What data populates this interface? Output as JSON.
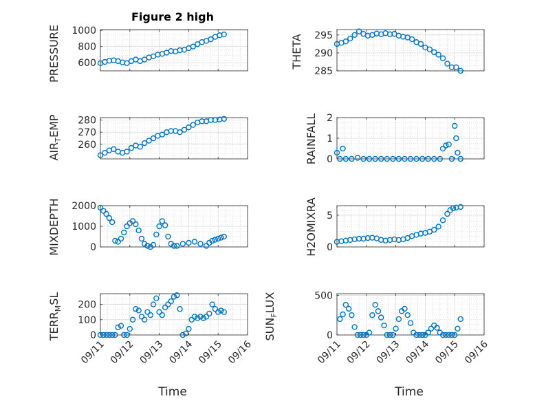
{
  "chart_data": [
    {
      "type": "scatter",
      "title": "Figure 2 high",
      "ylabel": "PRESSURE",
      "xlabel": "",
      "ylim": [
        500,
        1010
      ],
      "yticks": [
        600,
        800,
        1000
      ],
      "xlim": [
        0,
        5
      ],
      "xticks": [],
      "grid": true,
      "marker_color": "#0072BD",
      "x": [
        0,
        0.15,
        0.3,
        0.45,
        0.6,
        0.75,
        0.9,
        1.05,
        1.2,
        1.35,
        1.5,
        1.65,
        1.8,
        1.95,
        2.1,
        2.25,
        2.4,
        2.55,
        2.7,
        2.85,
        3.0,
        3.15,
        3.3,
        3.45,
        3.6,
        3.75,
        3.9,
        4.05,
        4.2
      ],
      "y": [
        595,
        610,
        625,
        630,
        620,
        605,
        595,
        620,
        640,
        620,
        640,
        665,
        680,
        700,
        710,
        725,
        745,
        740,
        755,
        760,
        780,
        800,
        830,
        855,
        870,
        890,
        920,
        940,
        950
      ]
    },
    {
      "type": "scatter",
      "title": "",
      "ylabel": "THETA",
      "xlabel": "",
      "ylim": [
        285,
        296.5
      ],
      "yticks": [
        285,
        290,
        295
      ],
      "xlim": [
        0,
        5
      ],
      "xticks": [],
      "grid": true,
      "marker_color": "#0072BD",
      "x": [
        0,
        0.15,
        0.3,
        0.45,
        0.6,
        0.75,
        0.9,
        1.05,
        1.2,
        1.35,
        1.5,
        1.65,
        1.8,
        1.95,
        2.1,
        2.25,
        2.4,
        2.55,
        2.7,
        2.85,
        3.0,
        3.15,
        3.3,
        3.45,
        3.6,
        3.75,
        3.9,
        4.05,
        4.2
      ],
      "y": [
        292.5,
        292.8,
        293.2,
        294,
        295,
        296,
        295.3,
        294.8,
        295,
        295.4,
        295.2,
        295.5,
        295.2,
        295.3,
        294.8,
        294.5,
        294.3,
        293.8,
        293,
        292.5,
        291.5,
        291,
        290.2,
        289.5,
        288.5,
        287,
        286,
        286,
        285
      ]
    },
    {
      "type": "scatter",
      "title": "",
      "ylabel": "AIR_TEMP",
      "xlabel": "",
      "ylim": [
        248,
        282
      ],
      "yticks": [
        260,
        270,
        280
      ],
      "xlim": [
        0,
        5
      ],
      "xticks": [],
      "grid": true,
      "marker_color": "#0072BD",
      "x": [
        0,
        0.15,
        0.3,
        0.45,
        0.6,
        0.75,
        0.9,
        1.05,
        1.2,
        1.35,
        1.5,
        1.65,
        1.8,
        1.95,
        2.1,
        2.25,
        2.4,
        2.55,
        2.7,
        2.85,
        3.0,
        3.15,
        3.3,
        3.45,
        3.6,
        3.75,
        3.9,
        4.05,
        4.2
      ],
      "y": [
        251,
        253,
        255,
        256,
        254,
        253,
        254,
        257,
        259,
        258,
        261,
        263,
        265,
        267,
        268,
        270,
        271,
        271,
        270,
        272,
        274,
        276,
        278,
        279,
        279,
        280,
        280,
        280.5,
        281
      ]
    },
    {
      "type": "scatter",
      "title": "",
      "ylabel": "RAINFALL",
      "xlabel": "",
      "ylim": [
        0,
        2
      ],
      "yticks": [
        0,
        1,
        2
      ],
      "xlim": [
        0,
        5
      ],
      "xticks": [],
      "grid": true,
      "marker_color": "#0072BD",
      "x": [
        0,
        0.1,
        0.2,
        0.3,
        0.5,
        0.7,
        0.9,
        1.1,
        1.3,
        1.5,
        1.7,
        1.9,
        2.1,
        2.3,
        2.5,
        2.7,
        2.9,
        3.1,
        3.3,
        3.5,
        3.6,
        3.7,
        3.8,
        3.9,
        4.0,
        4.05,
        4.1,
        4.2
      ],
      "y": [
        0.3,
        0,
        0.5,
        0,
        0,
        0.05,
        0,
        0,
        0,
        0,
        0,
        0,
        0,
        0,
        0,
        0,
        0,
        0,
        0,
        0,
        0.5,
        0.65,
        0.7,
        0,
        1.6,
        1.0,
        0.3,
        0
      ]
    },
    {
      "type": "scatter",
      "title": "",
      "ylabel": "MIXDEPTH",
      "xlabel": "",
      "ylim": [
        0,
        2000
      ],
      "yticks": [
        0,
        1000,
        2000
      ],
      "xlim": [
        0,
        5
      ],
      "xticks": [],
      "grid": true,
      "marker_color": "#0072BD",
      "x": [
        0,
        0.1,
        0.2,
        0.3,
        0.4,
        0.5,
        0.6,
        0.7,
        0.8,
        0.9,
        1.0,
        1.1,
        1.2,
        1.3,
        1.4,
        1.5,
        1.6,
        1.7,
        1.8,
        1.9,
        2.0,
        2.1,
        2.2,
        2.3,
        2.4,
        2.5,
        2.6,
        2.8,
        3.0,
        3.2,
        3.4,
        3.6,
        3.7,
        3.8,
        3.9,
        4.0,
        4.1,
        4.2
      ],
      "y": [
        1900,
        1750,
        1600,
        1400,
        1200,
        300,
        250,
        400,
        700,
        1000,
        1150,
        1250,
        1100,
        800,
        400,
        150,
        50,
        0,
        100,
        600,
        1000,
        1250,
        1050,
        500,
        150,
        50,
        50,
        150,
        200,
        250,
        150,
        50,
        200,
        300,
        350,
        400,
        450,
        500
      ]
    },
    {
      "type": "scatter",
      "title": "",
      "ylabel": "H2OMIXRA",
      "xlabel": "",
      "ylim": [
        0,
        6.5
      ],
      "yticks": [
        0,
        5
      ],
      "xlim": [
        0,
        5
      ],
      "xticks": [],
      "grid": true,
      "marker_color": "#0072BD",
      "x": [
        0,
        0.15,
        0.3,
        0.45,
        0.6,
        0.75,
        0.9,
        1.05,
        1.2,
        1.35,
        1.5,
        1.65,
        1.8,
        1.95,
        2.1,
        2.25,
        2.4,
        2.55,
        2.7,
        2.85,
        3.0,
        3.15,
        3.3,
        3.45,
        3.6,
        3.75,
        3.85,
        3.95,
        4.05,
        4.2
      ],
      "y": [
        0.8,
        0.9,
        1.0,
        1.1,
        1.2,
        1.3,
        1.3,
        1.4,
        1.45,
        1.35,
        1.1,
        1.0,
        1.1,
        1.2,
        1.1,
        1.2,
        1.4,
        1.7,
        1.9,
        2.1,
        2.2,
        2.4,
        2.7,
        3.2,
        4.2,
        5.2,
        5.8,
        6.1,
        6.2,
        6.3
      ]
    },
    {
      "type": "scatter",
      "title": "",
      "ylabel": "TERR_MSL",
      "xlabel": "Time",
      "ylim": [
        0,
        270
      ],
      "yticks": [
        0,
        100,
        200
      ],
      "xlim": [
        0,
        5
      ],
      "xticks": [
        "09/11",
        "09/12",
        "09/13",
        "09/14",
        "09/15",
        "09/16"
      ],
      "grid": true,
      "marker_color": "#0072BD",
      "x": [
        0,
        0.1,
        0.2,
        0.3,
        0.4,
        0.5,
        0.6,
        0.7,
        0.8,
        0.9,
        1.0,
        1.1,
        1.2,
        1.3,
        1.4,
        1.5,
        1.6,
        1.7,
        1.8,
        1.9,
        2.0,
        2.1,
        2.2,
        2.3,
        2.4,
        2.5,
        2.6,
        2.7,
        2.8,
        2.9,
        3.0,
        3.1,
        3.2,
        3.3,
        3.4,
        3.5,
        3.6,
        3.7,
        3.8,
        3.9,
        4.0,
        4.1,
        4.2
      ],
      "y": [
        0,
        0,
        0,
        0,
        0,
        0,
        50,
        60,
        0,
        0,
        40,
        100,
        170,
        160,
        120,
        100,
        150,
        130,
        200,
        240,
        150,
        130,
        180,
        200,
        220,
        250,
        260,
        170,
        0,
        10,
        40,
        100,
        120,
        110,
        120,
        110,
        120,
        140,
        200,
        170,
        150,
        160,
        150
      ]
    },
    {
      "type": "scatter",
      "title": "",
      "ylabel": "SUN_FLUX",
      "xlabel": "Time",
      "ylim": [
        0,
        520
      ],
      "yticks": [
        0,
        500
      ],
      "xlim": [
        0,
        5
      ],
      "xticks": [
        "09/11",
        "09/12",
        "09/13",
        "09/14",
        "09/15",
        "09/16"
      ],
      "grid": true,
      "marker_color": "#0072BD",
      "x": [
        0.1,
        0.2,
        0.3,
        0.4,
        0.5,
        0.6,
        0.7,
        0.8,
        0.9,
        1.0,
        1.1,
        1.2,
        1.3,
        1.4,
        1.5,
        1.6,
        1.7,
        1.8,
        1.9,
        2.0,
        2.1,
        2.2,
        2.3,
        2.4,
        2.5,
        2.6,
        2.7,
        2.8,
        2.9,
        3.0,
        3.1,
        3.2,
        3.3,
        3.4,
        3.5,
        3.6,
        3.7,
        3.8,
        3.9,
        4.0,
        4.1,
        4.2
      ],
      "y": [
        200,
        260,
        380,
        330,
        250,
        100,
        0,
        0,
        0,
        0,
        30,
        250,
        380,
        300,
        220,
        120,
        0,
        0,
        0,
        80,
        200,
        300,
        330,
        250,
        150,
        30,
        0,
        0,
        0,
        0,
        30,
        80,
        120,
        90,
        30,
        0,
        0,
        0,
        0,
        0,
        80,
        200
      ]
    }
  ],
  "labels": {
    "title": "Figure 2 high",
    "time_left": "Time",
    "time_right": "Time",
    "pressure": "PRESSURE",
    "theta": "THETA",
    "air_temp_main": "AIR",
    "air_temp_sub": "T",
    "air_temp_tail": "EMP",
    "rainfall": "RAINFALL",
    "mixdepth": "MIXDEPTH",
    "h2omixra": "H2OMIXRA",
    "terr_main": "TERR",
    "terr_sub": "M",
    "terr_tail": "SL",
    "sun_main": "SUN",
    "sun_sub": "F",
    "sun_tail": "LUX"
  }
}
